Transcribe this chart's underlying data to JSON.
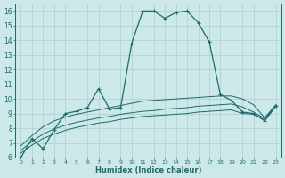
{
  "xlabel": "Humidex (Indice chaleur)",
  "background_color": "#cde8e8",
  "grid_color": "#b0cccc",
  "line_color": "#1a6b6b",
  "xlim": [
    -0.5,
    23.5
  ],
  "ylim": [
    6,
    16.5
  ],
  "yticks": [
    6,
    7,
    8,
    9,
    10,
    11,
    12,
    13,
    14,
    15,
    16
  ],
  "xticks": [
    0,
    1,
    2,
    3,
    4,
    5,
    6,
    7,
    8,
    9,
    10,
    11,
    12,
    13,
    14,
    15,
    16,
    17,
    18,
    19,
    20,
    21,
    22,
    23
  ],
  "line1_x": [
    0,
    1,
    2,
    3,
    4,
    5,
    6,
    7,
    8,
    9,
    10,
    11,
    12,
    13,
    14,
    15,
    16,
    17,
    18,
    19,
    20,
    21,
    22,
    23
  ],
  "line1_y": [
    6.0,
    7.3,
    6.6,
    7.9,
    9.0,
    9.15,
    9.4,
    10.7,
    9.3,
    9.4,
    13.8,
    16.0,
    16.0,
    15.5,
    15.9,
    16.0,
    15.2,
    13.9,
    10.3,
    9.9,
    9.1,
    9.0,
    8.5,
    9.5
  ],
  "line2_x": [
    0,
    1,
    2,
    3,
    4,
    5,
    6,
    7,
    8,
    9,
    10,
    11,
    12,
    13,
    14,
    15,
    16,
    17,
    18,
    19,
    20,
    21,
    22,
    23
  ],
  "line2_y": [
    6.3,
    6.85,
    7.3,
    7.6,
    7.85,
    8.05,
    8.2,
    8.35,
    8.45,
    8.6,
    8.7,
    8.8,
    8.85,
    8.9,
    8.95,
    9.0,
    9.1,
    9.15,
    9.2,
    9.25,
    9.0,
    8.95,
    8.55,
    9.5
  ],
  "line3_x": [
    0,
    1,
    2,
    3,
    4,
    5,
    6,
    7,
    8,
    9,
    10,
    11,
    12,
    13,
    14,
    15,
    16,
    17,
    18,
    19,
    20,
    21,
    22,
    23
  ],
  "line3_y": [
    6.5,
    7.1,
    7.6,
    7.95,
    8.2,
    8.4,
    8.55,
    8.7,
    8.8,
    8.95,
    9.05,
    9.15,
    9.2,
    9.3,
    9.35,
    9.4,
    9.5,
    9.55,
    9.6,
    9.65,
    9.45,
    9.1,
    8.65,
    9.55
  ],
  "line4_x": [
    0,
    1,
    2,
    3,
    4,
    5,
    6,
    7,
    8,
    9,
    10,
    11,
    12,
    13,
    14,
    15,
    16,
    17,
    18,
    19,
    20,
    21,
    22,
    23
  ],
  "line4_y": [
    6.8,
    7.5,
    8.1,
    8.5,
    8.75,
    8.95,
    9.1,
    9.25,
    9.4,
    9.55,
    9.7,
    9.85,
    9.9,
    9.95,
    10.0,
    10.05,
    10.1,
    10.15,
    10.2,
    10.2,
    10.0,
    9.6,
    8.7,
    9.6
  ]
}
